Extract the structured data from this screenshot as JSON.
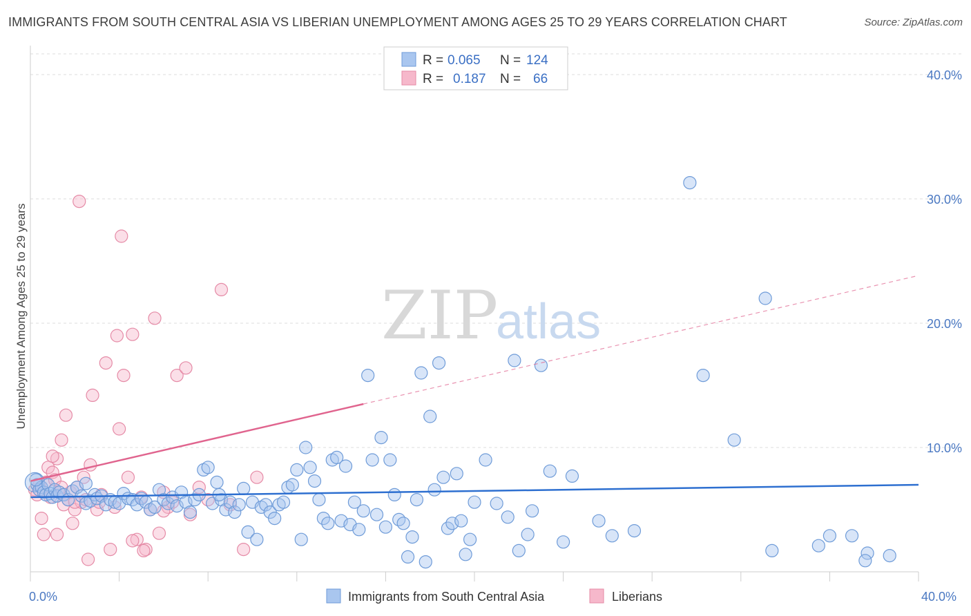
{
  "title": "IMMIGRANTS FROM SOUTH CENTRAL ASIA VS LIBERIAN UNEMPLOYMENT AMONG AGES 25 TO 29 YEARS CORRELATION CHART",
  "source": "Source: ZipAtlas.com",
  "watermark": {
    "zip": "ZIP",
    "atlas": "atlas"
  },
  "colors": {
    "blue_fill": "#a9c6ef",
    "blue_stroke": "#6e9bd8",
    "blue_line": "#2d6fd0",
    "pink_fill": "#f6b8cb",
    "pink_stroke": "#e58aa6",
    "pink_line": "#e0648e",
    "grid": "#dddddd",
    "tick_text": "#4a78c2"
  },
  "legend": {
    "rows": [
      {
        "r_label": "R =",
        "r_value": "0.065",
        "n_label": "N =",
        "n_value": "124"
      },
      {
        "r_label": "R =",
        "r_value": "0.187",
        "n_label": "N =",
        "n_value": "66"
      }
    ]
  },
  "chart_data": {
    "type": "scatter",
    "xlabel": "",
    "ylabel": "Unemployment Among Ages 25 to 29 years",
    "xlim": [
      0,
      40
    ],
    "ylim": [
      0,
      42
    ],
    "x_tick_labels": [
      "0.0%",
      "40.0%"
    ],
    "y_ticks": [
      10,
      20,
      30,
      40
    ],
    "y_tick_labels": [
      "10.0%",
      "20.0%",
      "30.0%",
      "40.0%"
    ],
    "grid": true,
    "legend_position": "top-center",
    "series": [
      {
        "name": "Immigrants from South Central Asia",
        "color": "#a9c6ef",
        "trend": {
          "x0": 0,
          "y0": 6.0,
          "x1": 40,
          "y1": 7.0,
          "dashed_to": 40
        },
        "points": [
          [
            0.2,
            7.2
          ],
          [
            0.3,
            7.0
          ],
          [
            0.4,
            6.6
          ],
          [
            0.5,
            6.8
          ],
          [
            0.6,
            6.4
          ],
          [
            0.7,
            6.2
          ],
          [
            0.8,
            7.0
          ],
          [
            0.9,
            6.3
          ],
          [
            1.0,
            6.0
          ],
          [
            1.1,
            6.6
          ],
          [
            1.2,
            6.1
          ],
          [
            1.3,
            6.4
          ],
          [
            1.5,
            6.2
          ],
          [
            1.7,
            5.8
          ],
          [
            1.9,
            6.5
          ],
          [
            2.1,
            6.8
          ],
          [
            2.3,
            6.1
          ],
          [
            2.5,
            5.5
          ],
          [
            2.7,
            5.7
          ],
          [
            2.9,
            6.2
          ],
          [
            3.0,
            5.9
          ],
          [
            3.2,
            6.1
          ],
          [
            3.4,
            5.4
          ],
          [
            3.6,
            5.8
          ],
          [
            3.8,
            5.6
          ],
          [
            4.0,
            5.5
          ],
          [
            4.2,
            6.3
          ],
          [
            4.4,
            5.9
          ],
          [
            4.6,
            5.8
          ],
          [
            4.8,
            5.4
          ],
          [
            5.0,
            5.9
          ],
          [
            5.2,
            5.6
          ],
          [
            5.4,
            5.0
          ],
          [
            5.6,
            5.2
          ],
          [
            5.8,
            6.6
          ],
          [
            6.0,
            5.8
          ],
          [
            6.2,
            5.5
          ],
          [
            6.4,
            6.0
          ],
          [
            6.6,
            5.3
          ],
          [
            6.8,
            6.4
          ],
          [
            7.0,
            5.6
          ],
          [
            7.2,
            4.8
          ],
          [
            7.4,
            5.8
          ],
          [
            7.6,
            6.2
          ],
          [
            7.8,
            8.2
          ],
          [
            8.0,
            8.4
          ],
          [
            8.2,
            5.5
          ],
          [
            8.4,
            7.2
          ],
          [
            8.6,
            5.8
          ],
          [
            8.8,
            5.0
          ],
          [
            9.0,
            5.6
          ],
          [
            9.2,
            4.8
          ],
          [
            9.4,
            5.4
          ],
          [
            9.6,
            6.7
          ],
          [
            9.8,
            3.2
          ],
          [
            10.0,
            5.6
          ],
          [
            10.2,
            2.6
          ],
          [
            10.4,
            5.2
          ],
          [
            10.6,
            5.4
          ],
          [
            10.8,
            4.8
          ],
          [
            11.0,
            4.3
          ],
          [
            11.2,
            5.4
          ],
          [
            11.4,
            5.6
          ],
          [
            11.6,
            6.8
          ],
          [
            11.8,
            7.0
          ],
          [
            12.0,
            8.2
          ],
          [
            12.2,
            2.6
          ],
          [
            12.4,
            10.0
          ],
          [
            12.6,
            8.4
          ],
          [
            12.8,
            7.3
          ],
          [
            13.0,
            5.8
          ],
          [
            13.2,
            4.3
          ],
          [
            13.4,
            3.9
          ],
          [
            13.6,
            9.0
          ],
          [
            13.8,
            9.2
          ],
          [
            14.0,
            4.1
          ],
          [
            14.2,
            8.5
          ],
          [
            14.4,
            3.8
          ],
          [
            14.6,
            5.6
          ],
          [
            14.8,
            3.4
          ],
          [
            15.0,
            4.9
          ],
          [
            15.2,
            15.8
          ],
          [
            15.4,
            9.0
          ],
          [
            15.6,
            4.6
          ],
          [
            15.8,
            10.8
          ],
          [
            16.0,
            3.6
          ],
          [
            16.2,
            9.0
          ],
          [
            16.4,
            6.2
          ],
          [
            16.6,
            4.2
          ],
          [
            16.8,
            3.9
          ],
          [
            17.0,
            1.2
          ],
          [
            17.2,
            2.8
          ],
          [
            17.4,
            5.8
          ],
          [
            17.6,
            16.0
          ],
          [
            17.8,
            0.8
          ],
          [
            18.0,
            12.5
          ],
          [
            18.2,
            6.6
          ],
          [
            18.4,
            16.8
          ],
          [
            18.6,
            7.6
          ],
          [
            18.8,
            3.5
          ],
          [
            19.0,
            3.9
          ],
          [
            19.2,
            7.9
          ],
          [
            19.4,
            4.1
          ],
          [
            19.6,
            1.4
          ],
          [
            19.8,
            2.6
          ],
          [
            20.0,
            5.6
          ],
          [
            20.5,
            9.0
          ],
          [
            21.0,
            5.5
          ],
          [
            21.5,
            4.4
          ],
          [
            21.8,
            17.0
          ],
          [
            22.0,
            1.7
          ],
          [
            22.4,
            3.0
          ],
          [
            22.6,
            4.9
          ],
          [
            23.0,
            16.6
          ],
          [
            23.4,
            8.1
          ],
          [
            24.0,
            2.4
          ],
          [
            24.4,
            7.7
          ],
          [
            25.6,
            4.1
          ],
          [
            26.2,
            2.9
          ],
          [
            27.2,
            3.3
          ],
          [
            29.7,
            31.3
          ],
          [
            30.3,
            15.8
          ],
          [
            31.7,
            10.6
          ],
          [
            33.1,
            22.0
          ],
          [
            33.4,
            1.7
          ],
          [
            35.5,
            2.1
          ],
          [
            36.0,
            2.9
          ],
          [
            37.0,
            2.9
          ],
          [
            37.7,
            1.5
          ],
          [
            37.6,
            0.9
          ],
          [
            38.7,
            1.3
          ],
          [
            0.25,
            7.4
          ],
          [
            2.5,
            7.1
          ],
          [
            8.5,
            6.2
          ]
        ]
      },
      {
        "name": "Liberians",
        "color": "#f6b8cb",
        "trend": {
          "x0": 0,
          "y0": 7.3,
          "x1": 15,
          "y1": 13.5,
          "dashed_to": 40
        },
        "points": [
          [
            0.2,
            6.6
          ],
          [
            0.3,
            6.2
          ],
          [
            0.4,
            7.0
          ],
          [
            0.5,
            6.8
          ],
          [
            0.6,
            6.4
          ],
          [
            0.7,
            7.2
          ],
          [
            0.8,
            8.4
          ],
          [
            0.9,
            6.0
          ],
          [
            1.0,
            8.0
          ],
          [
            1.1,
            7.4
          ],
          [
            1.2,
            9.1
          ],
          [
            1.3,
            6.4
          ],
          [
            1.4,
            10.6
          ],
          [
            1.5,
            5.4
          ],
          [
            1.6,
            12.6
          ],
          [
            1.7,
            5.8
          ],
          [
            1.8,
            6.4
          ],
          [
            1.9,
            3.9
          ],
          [
            2.0,
            5.0
          ],
          [
            2.1,
            6.8
          ],
          [
            2.2,
            29.8
          ],
          [
            2.3,
            5.6
          ],
          [
            2.4,
            7.6
          ],
          [
            2.5,
            5.8
          ],
          [
            2.6,
            1.0
          ],
          [
            2.7,
            8.6
          ],
          [
            2.8,
            14.2
          ],
          [
            3.0,
            5.0
          ],
          [
            3.2,
            6.2
          ],
          [
            3.4,
            16.8
          ],
          [
            3.6,
            1.8
          ],
          [
            3.8,
            5.2
          ],
          [
            3.9,
            19.0
          ],
          [
            4.0,
            11.5
          ],
          [
            4.1,
            27.0
          ],
          [
            4.2,
            15.8
          ],
          [
            4.4,
            7.6
          ],
          [
            4.6,
            19.1
          ],
          [
            4.8,
            2.6
          ],
          [
            5.0,
            6.0
          ],
          [
            5.2,
            1.8
          ],
          [
            5.4,
            5.0
          ],
          [
            5.6,
            20.4
          ],
          [
            5.8,
            3.1
          ],
          [
            6.0,
            6.4
          ],
          [
            6.2,
            5.2
          ],
          [
            6.4,
            5.6
          ],
          [
            6.6,
            15.8
          ],
          [
            7.0,
            16.4
          ],
          [
            7.2,
            4.6
          ],
          [
            7.6,
            6.8
          ],
          [
            8.0,
            5.8
          ],
          [
            8.6,
            22.7
          ],
          [
            9.0,
            5.4
          ],
          [
            9.6,
            1.8
          ],
          [
            10.2,
            7.6
          ],
          [
            0.5,
            4.3
          ],
          [
            0.6,
            3.0
          ],
          [
            1.0,
            9.3
          ],
          [
            1.2,
            3.0
          ],
          [
            1.4,
            6.8
          ],
          [
            2.0,
            5.6
          ],
          [
            4.6,
            2.5
          ],
          [
            5.1,
            1.7
          ],
          [
            3.1,
            5.6
          ],
          [
            6.0,
            4.9
          ]
        ]
      }
    ]
  },
  "bottom_legend": {
    "items": [
      "Immigrants from South Central Asia",
      "Liberians"
    ]
  }
}
